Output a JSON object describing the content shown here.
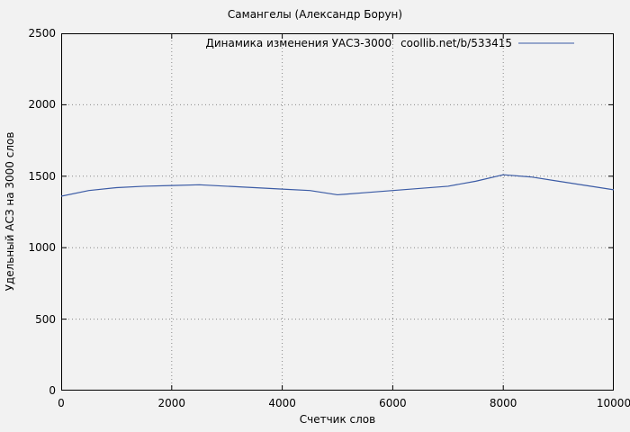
{
  "page": {
    "background": "#f2f2f2",
    "border_color": "#000000",
    "grid_color": "#888888"
  },
  "chart_data": {
    "type": "line",
    "title": "Самангелы (Александр Борун)",
    "legend_label": "Динамика изменения УАСЗ-3000",
    "legend_url": "coollib.net/b/533415",
    "xlabel": "Счетчик слов",
    "ylabel": "Удельный АСЗ на 3000 слов",
    "xlim": [
      0,
      10000
    ],
    "ylim": [
      0,
      2500
    ],
    "x_ticks": [
      0,
      2000,
      4000,
      6000,
      8000,
      10000
    ],
    "y_ticks": [
      0,
      500,
      1000,
      1500,
      2000,
      2500
    ],
    "grid": true,
    "legend_position": "top-inside",
    "line_color": "#3b5ba5",
    "series": [
      {
        "name": "Динамика изменения УАСЗ-3000 coollib.net/b/533415",
        "x": [
          0,
          500,
          1000,
          1500,
          2000,
          2500,
          3000,
          3500,
          4000,
          4500,
          5000,
          5500,
          6000,
          6500,
          7000,
          7500,
          8000,
          8500,
          9000,
          9500,
          10000
        ],
        "values": [
          1360,
          1400,
          1420,
          1430,
          1435,
          1440,
          1430,
          1420,
          1410,
          1400,
          1370,
          1385,
          1400,
          1415,
          1430,
          1465,
          1510,
          1495,
          1465,
          1435,
          1405
        ]
      }
    ]
  }
}
